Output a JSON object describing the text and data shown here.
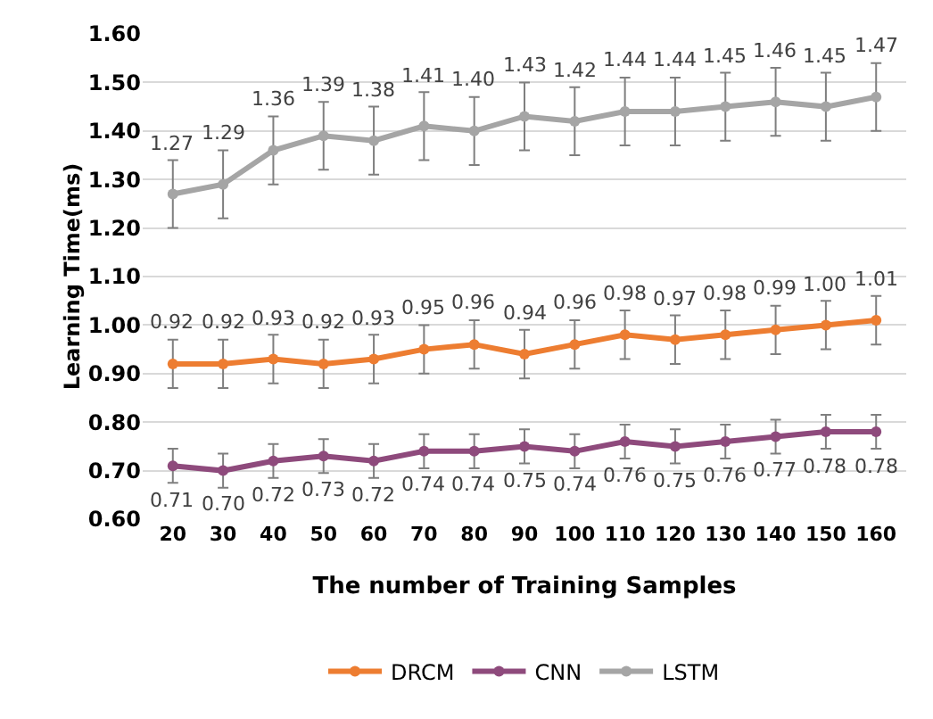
{
  "chart_data": {
    "type": "line",
    "xlabel": "The number of Training Samples",
    "ylabel": "Learning Time(ms)",
    "categories": [
      "20",
      "30",
      "40",
      "50",
      "60",
      "70",
      "80",
      "90",
      "100",
      "110",
      "120",
      "130",
      "140",
      "150",
      "160"
    ],
    "series": [
      {
        "name": "DRCM",
        "color": "#ed7d31",
        "values": [
          0.92,
          0.92,
          0.93,
          0.92,
          0.93,
          0.95,
          0.96,
          0.94,
          0.96,
          0.98,
          0.97,
          0.98,
          0.99,
          1.0,
          1.01
        ],
        "errors": [
          0.05,
          0.05,
          0.05,
          0.05,
          0.05,
          0.05,
          0.05,
          0.05,
          0.05,
          0.05,
          0.05,
          0.05,
          0.05,
          0.05,
          0.05
        ],
        "value_labels": [
          "0.92",
          "0.92",
          "0.93",
          "0.92",
          "0.93",
          "0.95",
          "0.96",
          "0.94",
          "0.96",
          "0.98",
          "0.97",
          "0.98",
          "0.99",
          "1.00",
          "1.01"
        ]
      },
      {
        "name": "CNN",
        "color": "#8e4a7c",
        "values": [
          0.71,
          0.7,
          0.72,
          0.73,
          0.72,
          0.74,
          0.74,
          0.75,
          0.74,
          0.76,
          0.75,
          0.76,
          0.77,
          0.78,
          0.78
        ],
        "errors": [
          0.035,
          0.035,
          0.035,
          0.035,
          0.035,
          0.035,
          0.035,
          0.035,
          0.035,
          0.035,
          0.035,
          0.035,
          0.035,
          0.035,
          0.035
        ],
        "value_labels": [
          "0.71",
          "0.70",
          "0.72",
          "0.73",
          "0.72",
          "0.74",
          "0.74",
          "0.75",
          "0.74",
          "0.76",
          "0.75",
          "0.76",
          "0.77",
          "0.78",
          "0.78"
        ]
      },
      {
        "name": "LSTM",
        "color": "#a5a5a5",
        "values": [
          1.27,
          1.29,
          1.36,
          1.39,
          1.38,
          1.41,
          1.4,
          1.43,
          1.42,
          1.44,
          1.44,
          1.45,
          1.46,
          1.45,
          1.47
        ],
        "errors": [
          0.07,
          0.07,
          0.07,
          0.07,
          0.07,
          0.07,
          0.07,
          0.07,
          0.07,
          0.07,
          0.07,
          0.07,
          0.07,
          0.07,
          0.07
        ],
        "value_labels": [
          "1.27",
          "1.29",
          "1.36",
          "1.39",
          "1.38",
          "1.41",
          "1.40",
          "1.43",
          "1.42",
          "1.44",
          "1.44",
          "1.45",
          "1.46",
          "1.45",
          "1.47"
        ]
      }
    ],
    "ylim": [
      0.6,
      1.6
    ],
    "yticks": [
      {
        "value": 0.6,
        "label": "0.60"
      },
      {
        "value": 0.7,
        "label": "0.70"
      },
      {
        "value": 0.8,
        "label": "0.80"
      },
      {
        "value": 0.9,
        "label": "0.90"
      },
      {
        "value": 1.0,
        "label": "1.00"
      },
      {
        "value": 1.1,
        "label": "1.10"
      },
      {
        "value": 1.2,
        "label": "1.20"
      },
      {
        "value": 1.3,
        "label": "1.30"
      },
      {
        "value": 1.4,
        "label": "1.40"
      },
      {
        "value": 1.5,
        "label": "1.50"
      },
      {
        "value": 1.6,
        "label": "1.60"
      }
    ],
    "grid": "y",
    "legend": "bottom",
    "marker": "circle",
    "line_style": "solid"
  }
}
